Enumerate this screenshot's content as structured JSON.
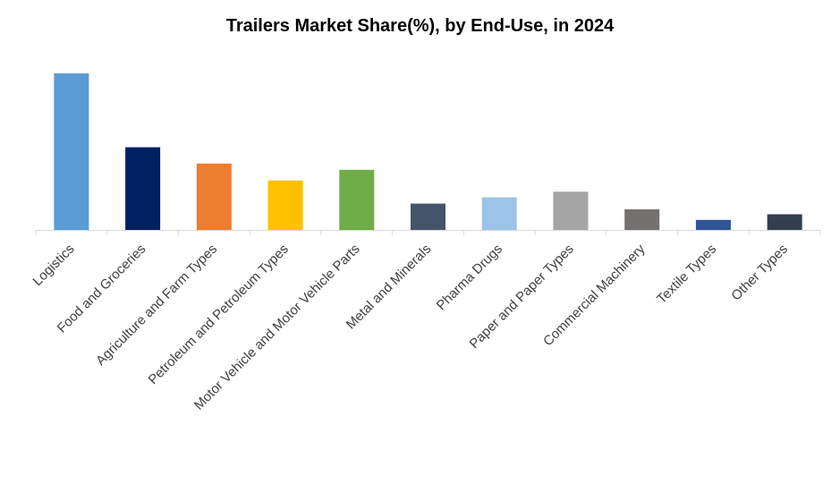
{
  "chart_data": {
    "type": "bar",
    "title": "Trailers Market Share(%), by End-Use, in 2024",
    "xlabel": "",
    "ylabel": "",
    "categories": [
      "Logistics",
      "Food and Groceries",
      "Agriculture and Farm Types",
      "Petroleum and Petroleum Types",
      "Motor Vehicle and Motor Vehicle Parts",
      "Metal and Minerals",
      "Pharma Drugs",
      "Paper and Paper Types",
      "Commercial Machinery",
      "Textile Types",
      "Other Types"
    ],
    "values": [
      25.0,
      13.2,
      10.6,
      7.9,
      9.6,
      4.2,
      5.2,
      6.1,
      3.3,
      1.6,
      2.5
    ],
    "colors": [
      "#5b9bd5",
      "#002060",
      "#ed7d31",
      "#ffc000",
      "#70ad47",
      "#44546a",
      "#9dc3e6",
      "#a5a5a5",
      "#767171",
      "#2f5597",
      "#333f50"
    ],
    "ylim": [
      0,
      26
    ],
    "y_axis_visible": false,
    "grid": false,
    "legend": "none",
    "axis_color": "#d9d9d9",
    "tick_label_color": "#404040",
    "tick_label_rotation": -45
  }
}
